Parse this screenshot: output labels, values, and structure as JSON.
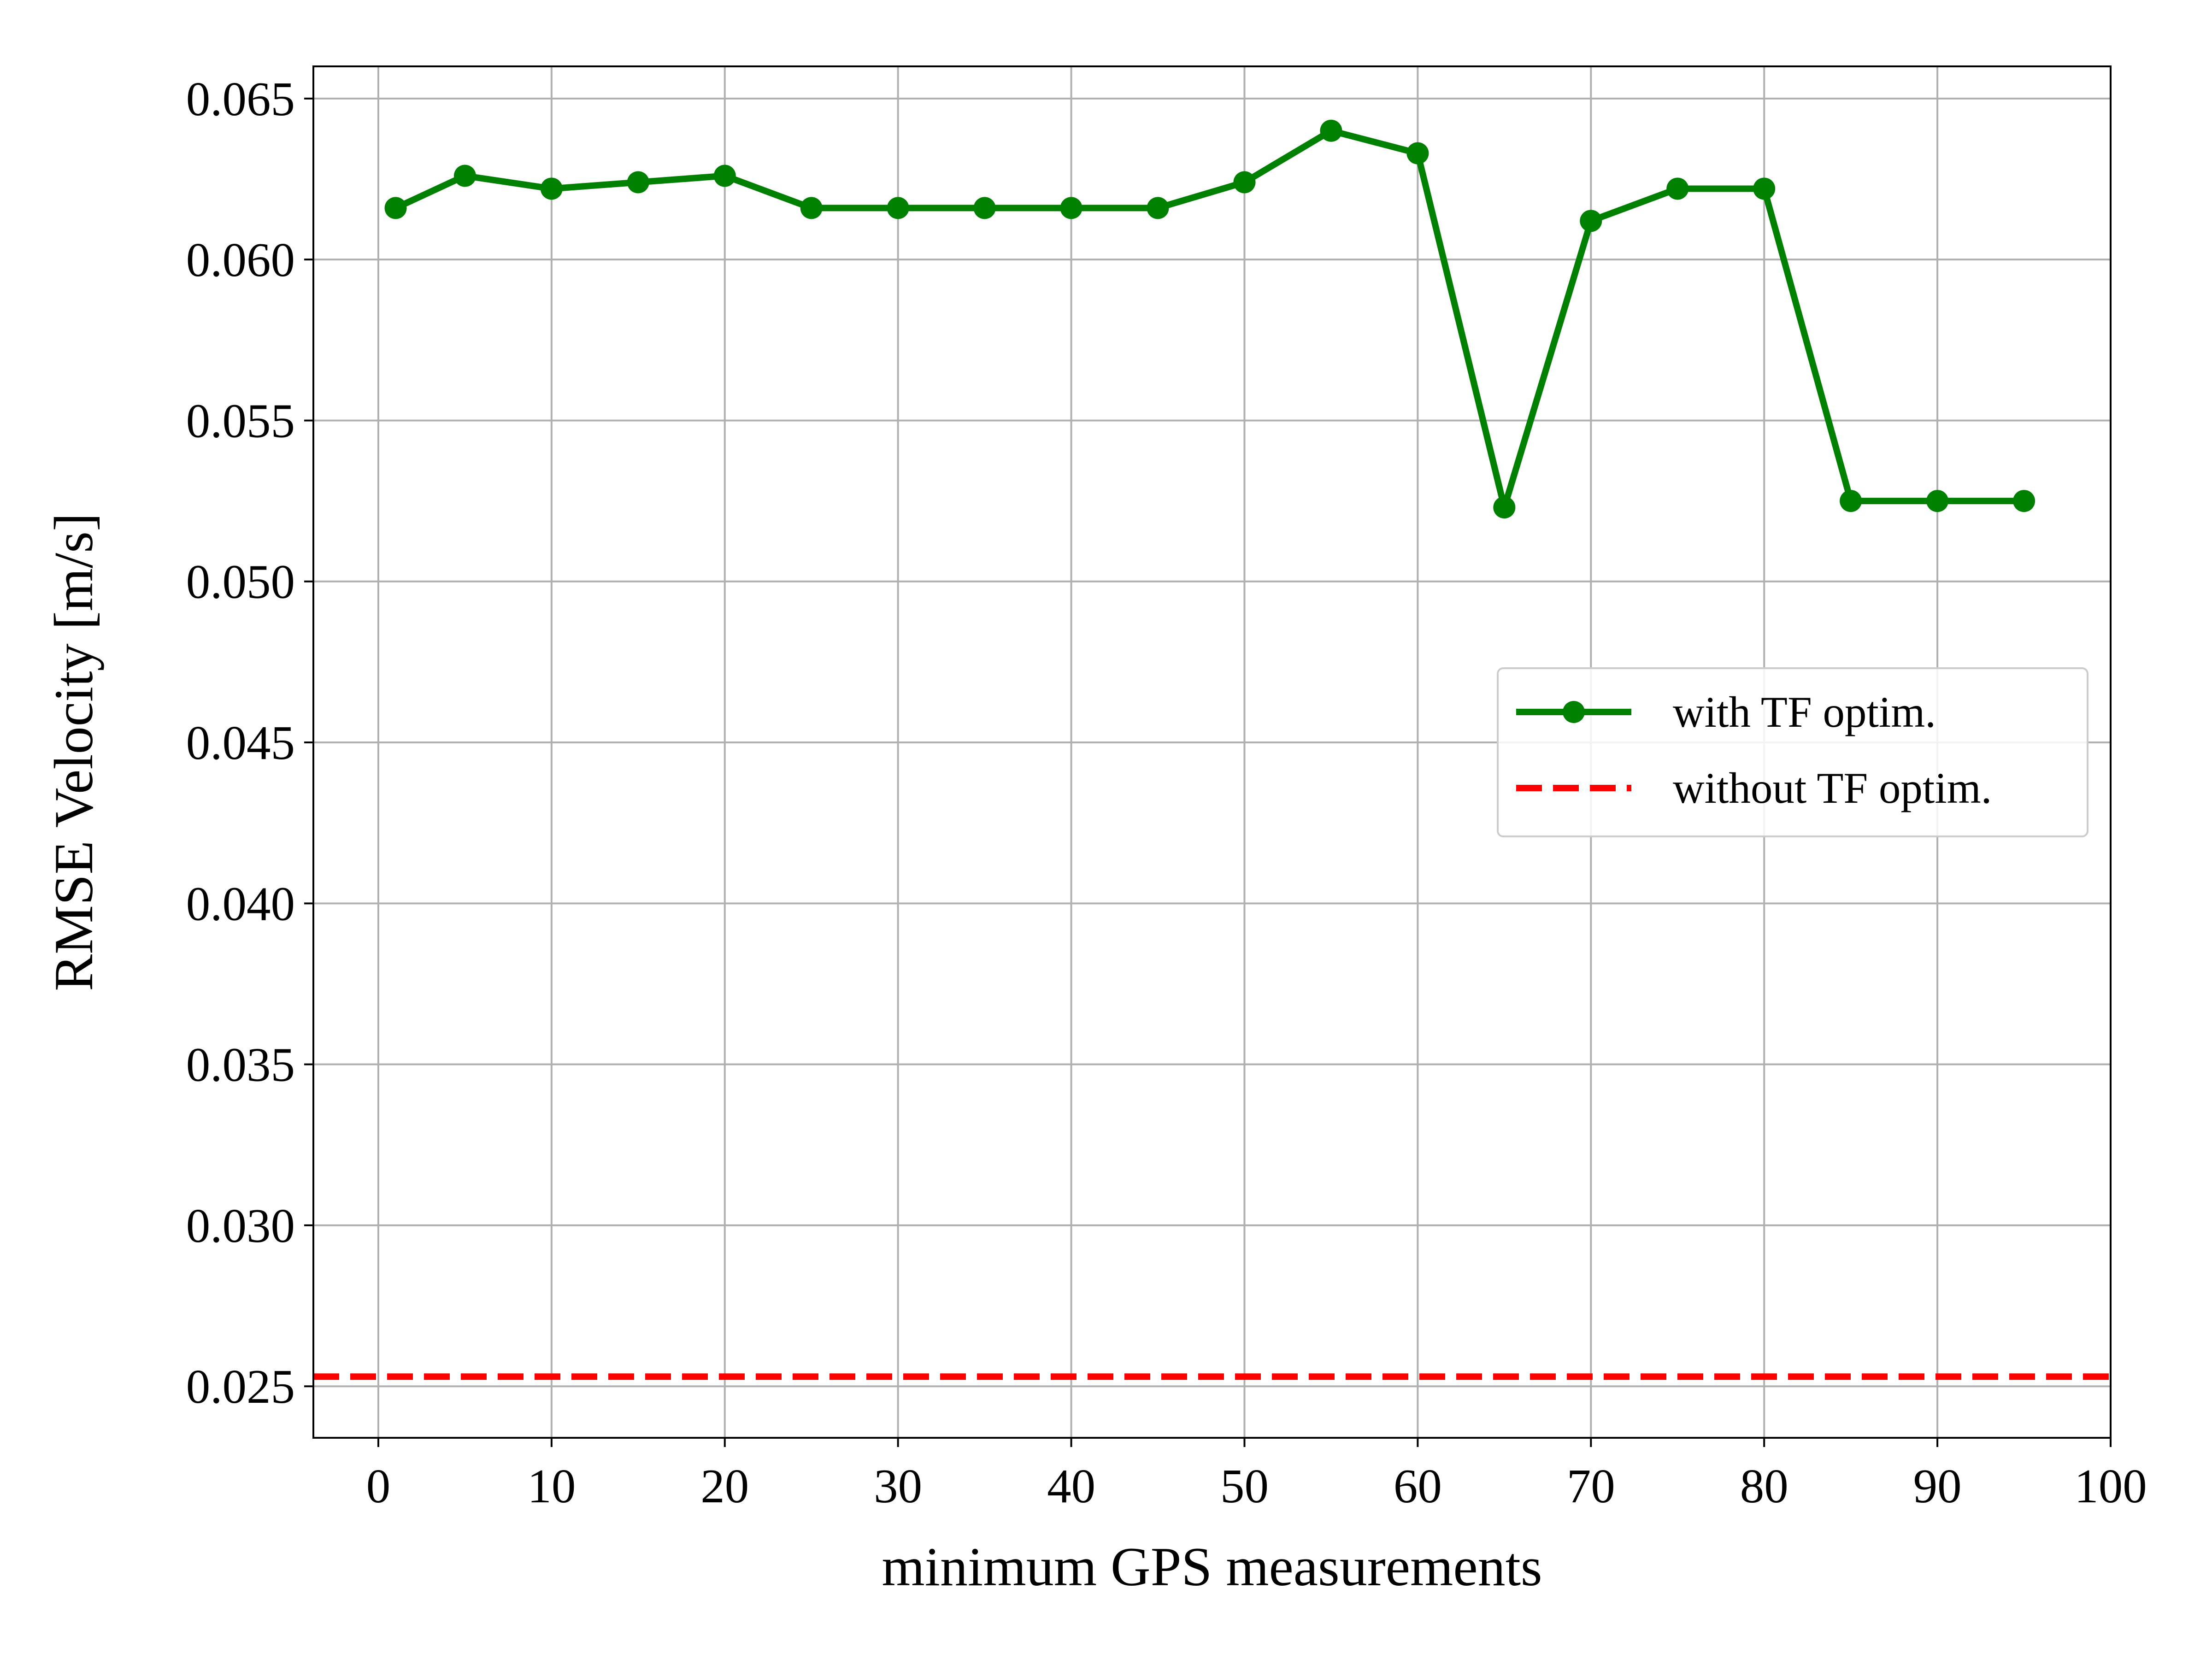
{
  "chart_data": {
    "type": "line",
    "title": "",
    "xlabel": "minimum GPS measurements",
    "ylabel": "RMSE Velocity [m/s]",
    "xlim": [
      -3.75,
      100
    ],
    "ylim": [
      0.0234,
      0.066
    ],
    "xticks": [
      0,
      10,
      20,
      30,
      40,
      50,
      60,
      70,
      80,
      90,
      100
    ],
    "yticks": [
      0.025,
      0.03,
      0.035,
      0.04,
      0.045,
      0.05,
      0.055,
      0.06,
      0.065
    ],
    "xtick_labels": [
      "0",
      "10",
      "20",
      "30",
      "40",
      "50",
      "60",
      "70",
      "80",
      "90",
      "100"
    ],
    "ytick_labels": [
      "0.025",
      "0.030",
      "0.035",
      "0.040",
      "0.045",
      "0.050",
      "0.055",
      "0.060",
      "0.065"
    ],
    "grid": true,
    "legend_position": "center-right",
    "series": [
      {
        "name": "with TF optim.",
        "style": "solid-line-with-markers",
        "color": "#008000",
        "x": [
          1,
          5,
          10,
          15,
          20,
          25,
          30,
          35,
          40,
          45,
          50,
          55,
          60,
          65,
          70,
          75,
          80,
          85,
          90,
          95
        ],
        "y": [
          0.0616,
          0.0626,
          0.0622,
          0.0624,
          0.0626,
          0.0616,
          0.0616,
          0.0616,
          0.0616,
          0.0616,
          0.0624,
          0.064,
          0.0633,
          0.0523,
          0.0612,
          0.0622,
          0.0622,
          0.0525,
          0.0525,
          0.0525
        ]
      },
      {
        "name": "without TF optim.",
        "style": "dashed-horizontal-line",
        "color": "#ff0000",
        "y_constant": 0.0253
      }
    ]
  }
}
